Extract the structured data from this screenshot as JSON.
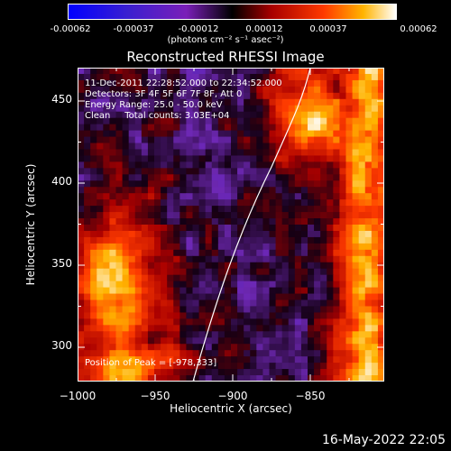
{
  "colorbar": {
    "ticks": [
      "-0.00062",
      "-0.00037",
      "-0.00012",
      "0.00012",
      "0.00037",
      "0.00062"
    ],
    "units": "(photons cm⁻² s⁻¹ asec⁻²)"
  },
  "title": "Reconstructed RHESSI Image",
  "annotations": {
    "time": "11-Dec-2011 22:28:52.000 to 22:34:52.000",
    "detectors": "Detectors: 3F 4F 5F 6F 7F 8F, Att 0",
    "energy": "Energy Range: 25.0 - 50.0 keV",
    "clean": "Clean     Total counts: 3.03E+04",
    "peak": "Position of Peak = [-978,333]"
  },
  "axes": {
    "xlabel": "Heliocentric X (arcsec)",
    "ylabel": "Heliocentric Y (arcsec)",
    "xticks": [
      "−1000",
      "−950",
      "−900",
      "−850"
    ],
    "yticks": [
      "450",
      "400",
      "350",
      "300"
    ],
    "xlim": [
      -1000,
      -808
    ],
    "ylim": [
      277,
      472
    ]
  },
  "footer": "16-May-2022 22:05"
}
